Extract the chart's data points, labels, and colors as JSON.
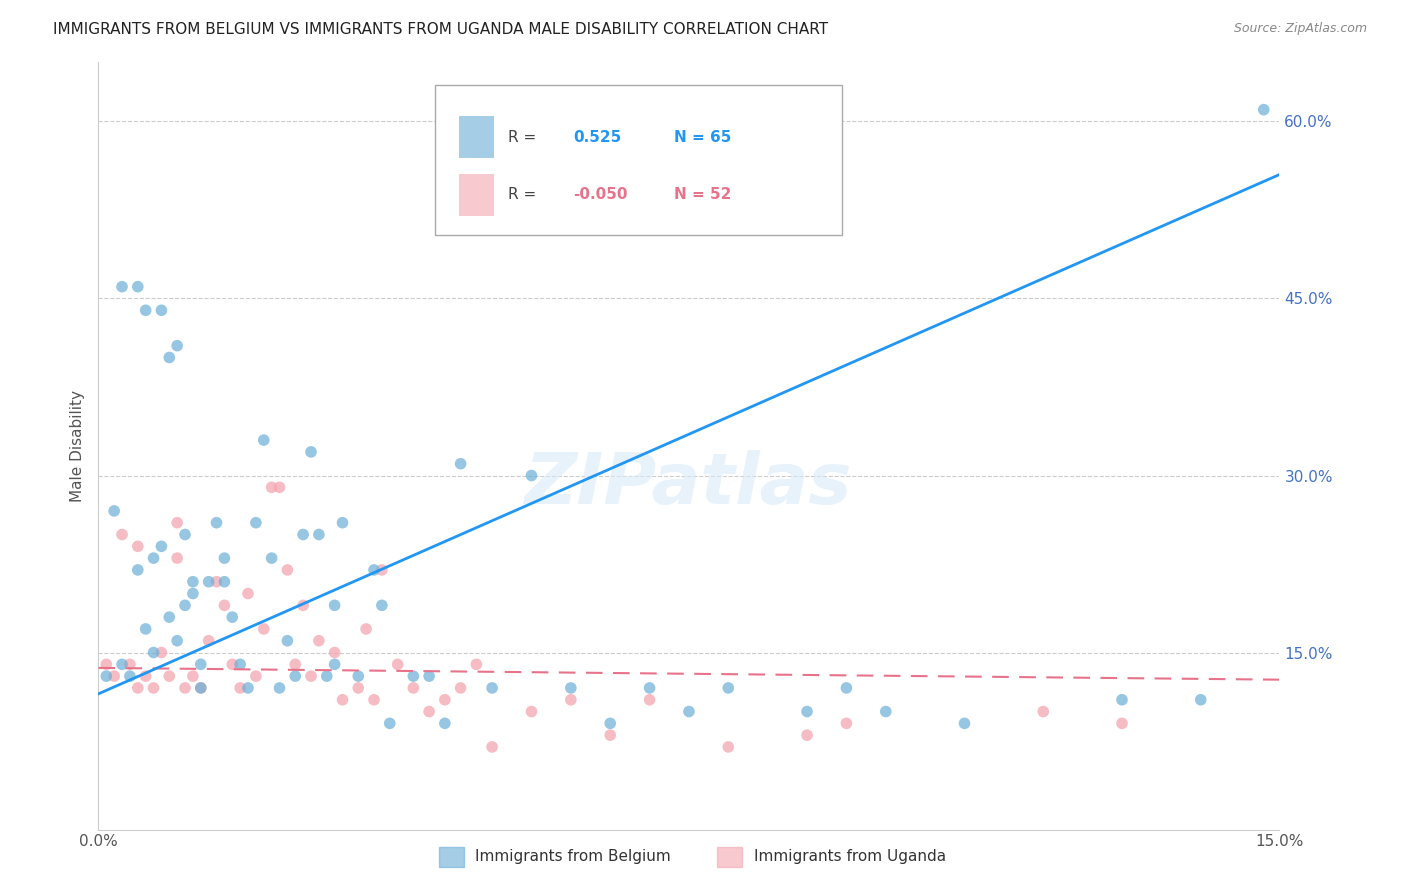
{
  "title": "IMMIGRANTS FROM BELGIUM VS IMMIGRANTS FROM UGANDA MALE DISABILITY CORRELATION CHART",
  "source": "Source: ZipAtlas.com",
  "ylabel": "Male Disability",
  "xlim": [
    0.0,
    0.15
  ],
  "ylim": [
    0.0,
    0.65
  ],
  "yticks": [
    0.15,
    0.3,
    0.45,
    0.6
  ],
  "ytick_labels": [
    "15.0%",
    "30.0%",
    "45.0%",
    "60.0%"
  ],
  "xtick_labels": [
    "0.0%",
    "",
    "",
    "15.0%"
  ],
  "belgium_R": 0.525,
  "belgium_N": 65,
  "uganda_R": -0.05,
  "uganda_N": 52,
  "belgium_color": "#6aaed6",
  "uganda_color": "#f4a6b0",
  "belgium_line_color": "#2196F3",
  "uganda_line_color": "#e8728a",
  "watermark": "ZIPatlas",
  "axis_label_color": "#4472C4",
  "grid_color": "#cccccc",
  "belgium_line_x": [
    0.0,
    0.15
  ],
  "belgium_line_y": [
    0.115,
    0.555
  ],
  "uganda_line_x": [
    0.0,
    0.15
  ],
  "uganda_line_y": [
    0.137,
    0.127
  ],
  "belgium_scatter_x": [
    0.001,
    0.002,
    0.003,
    0.003,
    0.004,
    0.005,
    0.005,
    0.006,
    0.006,
    0.007,
    0.007,
    0.008,
    0.008,
    0.009,
    0.009,
    0.01,
    0.01,
    0.011,
    0.011,
    0.012,
    0.012,
    0.013,
    0.013,
    0.014,
    0.015,
    0.016,
    0.016,
    0.017,
    0.018,
    0.019,
    0.02,
    0.021,
    0.022,
    0.023,
    0.024,
    0.025,
    0.026,
    0.027,
    0.028,
    0.029,
    0.03,
    0.03,
    0.031,
    0.033,
    0.035,
    0.036,
    0.037,
    0.04,
    0.042,
    0.044,
    0.046,
    0.05,
    0.055,
    0.06,
    0.065,
    0.07,
    0.075,
    0.08,
    0.09,
    0.095,
    0.1,
    0.11,
    0.13,
    0.14,
    0.148
  ],
  "belgium_scatter_y": [
    0.13,
    0.27,
    0.14,
    0.46,
    0.13,
    0.22,
    0.46,
    0.17,
    0.44,
    0.23,
    0.15,
    0.24,
    0.44,
    0.18,
    0.4,
    0.16,
    0.41,
    0.19,
    0.25,
    0.21,
    0.2,
    0.14,
    0.12,
    0.21,
    0.26,
    0.23,
    0.21,
    0.18,
    0.14,
    0.12,
    0.26,
    0.33,
    0.23,
    0.12,
    0.16,
    0.13,
    0.25,
    0.32,
    0.25,
    0.13,
    0.19,
    0.14,
    0.26,
    0.13,
    0.22,
    0.19,
    0.09,
    0.13,
    0.13,
    0.09,
    0.31,
    0.12,
    0.3,
    0.12,
    0.09,
    0.12,
    0.1,
    0.12,
    0.1,
    0.12,
    0.1,
    0.09,
    0.11,
    0.11,
    0.61
  ],
  "uganda_scatter_x": [
    0.001,
    0.002,
    0.003,
    0.004,
    0.005,
    0.005,
    0.006,
    0.007,
    0.008,
    0.009,
    0.01,
    0.01,
    0.011,
    0.012,
    0.013,
    0.014,
    0.015,
    0.016,
    0.017,
    0.018,
    0.019,
    0.02,
    0.021,
    0.022,
    0.023,
    0.024,
    0.025,
    0.026,
    0.027,
    0.028,
    0.03,
    0.031,
    0.033,
    0.034,
    0.035,
    0.036,
    0.038,
    0.04,
    0.042,
    0.044,
    0.046,
    0.048,
    0.05,
    0.055,
    0.06,
    0.065,
    0.07,
    0.08,
    0.09,
    0.095,
    0.12,
    0.13
  ],
  "uganda_scatter_y": [
    0.14,
    0.13,
    0.25,
    0.14,
    0.12,
    0.24,
    0.13,
    0.12,
    0.15,
    0.13,
    0.26,
    0.23,
    0.12,
    0.13,
    0.12,
    0.16,
    0.21,
    0.19,
    0.14,
    0.12,
    0.2,
    0.13,
    0.17,
    0.29,
    0.29,
    0.22,
    0.14,
    0.19,
    0.13,
    0.16,
    0.15,
    0.11,
    0.12,
    0.17,
    0.11,
    0.22,
    0.14,
    0.12,
    0.1,
    0.11,
    0.12,
    0.14,
    0.07,
    0.1,
    0.11,
    0.08,
    0.11,
    0.07,
    0.08,
    0.09,
    0.1,
    0.09
  ]
}
